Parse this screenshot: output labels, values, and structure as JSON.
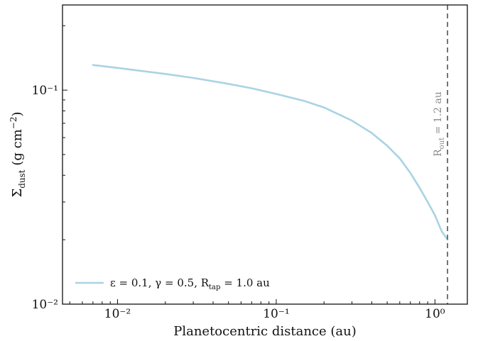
{
  "chart_data": {
    "type": "line",
    "xlabel": "Planetocentric distance (au)",
    "ylabel": "Σ_dust (g cm⁻²)",
    "xscale": "log",
    "yscale": "log",
    "xlim": [
      0.0045,
      1.6
    ],
    "ylim": [
      0.01,
      0.25
    ],
    "x_ticks": [
      {
        "value": 0.01,
        "label": "10⁻²"
      },
      {
        "value": 0.1,
        "label": "10⁻¹"
      },
      {
        "value": 1,
        "label": "10⁰"
      }
    ],
    "y_ticks": [
      {
        "value": 0.01,
        "label": "10⁻²"
      },
      {
        "value": 0.1,
        "label": "10⁻¹"
      }
    ],
    "grid": false,
    "legend": {
      "placement": "lower-left"
    },
    "series": [
      {
        "name": "ε = 0.1, γ = 0.5, R_tap = 1.0 au",
        "color": "#a9d3e4",
        "x": [
          0.007,
          0.01,
          0.02,
          0.03,
          0.05,
          0.07,
          0.1,
          0.15,
          0.2,
          0.3,
          0.4,
          0.5,
          0.6,
          0.7,
          0.8,
          0.9,
          1.0,
          1.1,
          1.2
        ],
        "y": [
          0.131,
          0.127,
          0.119,
          0.114,
          0.107,
          0.102,
          0.096,
          0.089,
          0.083,
          0.072,
          0.063,
          0.055,
          0.048,
          0.041,
          0.035,
          0.03,
          0.026,
          0.022,
          0.02
        ]
      }
    ],
    "annotations": [
      {
        "type": "vline",
        "x": 1.2,
        "label": "R_out = 1.2 au",
        "color": "#666666",
        "style": "dashed"
      }
    ]
  },
  "legend_label": {
    "base": "ε = 0.1, γ = 0.5, R",
    "sub": "tap",
    "tail": " = 1.0 au"
  },
  "annotation_label": {
    "base": "R",
    "sub": "out",
    "tail": " = 1.2 au"
  },
  "ylabel_parts": {
    "base": "Σ",
    "sub": "dust",
    "tail": " (g cm",
    "sup": "−2",
    "end": ")"
  }
}
